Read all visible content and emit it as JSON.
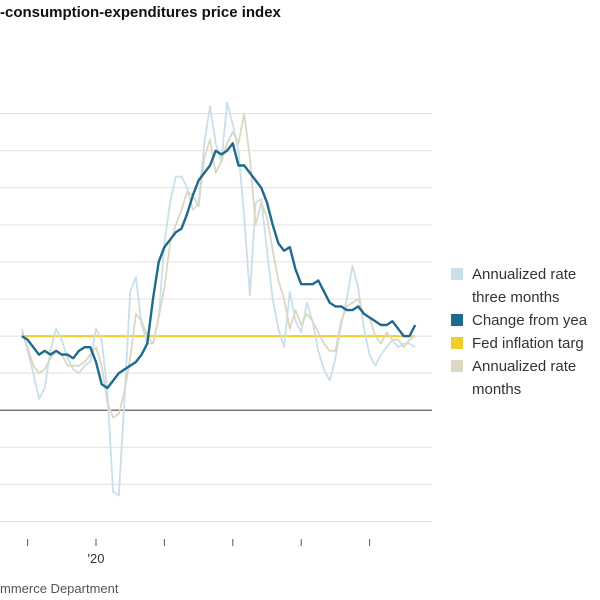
{
  "chart_title": "-consumption-expenditures price index",
  "source": "mmerce Department",
  "chart_data": {
    "type": "line",
    "title": "-consumption-expenditures price index",
    "xlabel": "",
    "ylabel": "",
    "x_tick_labels": [
      "'20"
    ],
    "grid": true,
    "legend_position": "right",
    "x": [
      "2018-12",
      "2019-01",
      "2019-02",
      "2019-03",
      "2019-04",
      "2019-05",
      "2019-06",
      "2019-07",
      "2019-08",
      "2019-09",
      "2019-10",
      "2019-11",
      "2019-12",
      "2020-01",
      "2020-02",
      "2020-03",
      "2020-04",
      "2020-05",
      "2020-06",
      "2020-07",
      "2020-08",
      "2020-09",
      "2020-10",
      "2020-11",
      "2020-12",
      "2021-01",
      "2021-02",
      "2021-03",
      "2021-04",
      "2021-05",
      "2021-06",
      "2021-07",
      "2021-08",
      "2021-09",
      "2021-10",
      "2021-11",
      "2021-12",
      "2022-01",
      "2022-02",
      "2022-03",
      "2022-04",
      "2022-05",
      "2022-06",
      "2022-07",
      "2022-08",
      "2022-09",
      "2022-10",
      "2022-11",
      "2022-12",
      "2023-01",
      "2023-02",
      "2023-03",
      "2023-04",
      "2023-05",
      "2023-06",
      "2023-07",
      "2023-08",
      "2023-09",
      "2023-10",
      "2023-11",
      "2023-12",
      "2024-01",
      "2024-02",
      "2024-03",
      "2024-04",
      "2024-05",
      "2024-06",
      "2024-07",
      "2024-08",
      "2024-09"
    ],
    "series": [
      {
        "name": "Annualized rate three months",
        "color": "#c9dfe9",
        "values": [
          2.2,
          1.6,
          1.0,
          0.3,
          0.6,
          1.6,
          2.2,
          1.9,
          1.4,
          1.1,
          1.0,
          1.2,
          1.3,
          2.2,
          1.9,
          0.5,
          -2.2,
          -2.3,
          0.3,
          3.2,
          3.6,
          2.3,
          1.8,
          1.8,
          2.5,
          4.5,
          5.6,
          6.3,
          6.3,
          6.0,
          5.4,
          5.6,
          7.2,
          8.2,
          7.2,
          6.7,
          8.3,
          7.7,
          7.0,
          5.2,
          3.1,
          5.6,
          5.7,
          4.3,
          3.0,
          2.2,
          1.7,
          3.2,
          2.4,
          2.1,
          2.9,
          2.4,
          1.6,
          1.1,
          0.8,
          1.4,
          2.3,
          3.0,
          3.9,
          3.3,
          2.2,
          1.5,
          1.2,
          1.5,
          1.7,
          1.9,
          1.7,
          1.8,
          1.8,
          1.7
        ]
      },
      {
        "name": "Change from yea",
        "color": "#1e6a8d",
        "values": [
          2.0,
          1.9,
          1.7,
          1.5,
          1.6,
          1.5,
          1.6,
          1.5,
          1.5,
          1.4,
          1.6,
          1.7,
          1.7,
          1.3,
          0.7,
          0.6,
          0.8,
          1.0,
          1.1,
          1.2,
          1.3,
          1.5,
          1.8,
          3.0,
          4.0,
          4.4,
          4.6,
          4.8,
          4.9,
          5.3,
          5.8,
          6.2,
          6.4,
          6.6,
          7.0,
          6.9,
          7.0,
          7.2,
          6.6,
          6.6,
          6.4,
          6.2,
          6.0,
          5.6,
          5.0,
          4.5,
          4.3,
          4.4,
          3.8,
          3.4,
          3.4,
          3.4,
          3.5,
          3.2,
          2.9,
          2.8,
          2.8,
          2.7,
          2.7,
          2.8,
          2.6,
          2.5,
          2.4,
          2.3,
          2.3,
          2.4,
          2.2,
          2.0,
          2.0,
          2.3
        ]
      },
      {
        "name": "Fed inflation targ",
        "color": "#f0cc2e",
        "values": [
          2.0,
          2.0,
          2.0,
          2.0,
          2.0,
          2.0,
          2.0,
          2.0,
          2.0,
          2.0,
          2.0,
          2.0,
          2.0,
          2.0,
          2.0,
          2.0,
          2.0,
          2.0,
          2.0,
          2.0,
          2.0,
          2.0,
          2.0,
          2.0,
          2.0,
          2.0,
          2.0,
          2.0,
          2.0,
          2.0,
          2.0,
          2.0,
          2.0,
          2.0,
          2.0,
          2.0,
          2.0,
          2.0,
          2.0,
          2.0,
          2.0,
          2.0,
          2.0,
          2.0,
          2.0,
          2.0,
          2.0,
          2.0,
          2.0,
          2.0,
          2.0,
          2.0,
          2.0,
          2.0,
          2.0,
          2.0,
          2.0,
          2.0,
          2.0,
          2.0,
          2.0,
          2.0,
          2.0,
          2.0,
          2.0,
          2.0,
          2.0,
          2.0,
          2.0,
          2.0
        ]
      },
      {
        "name": "Annualized rate months",
        "color": "#dcd7c2",
        "values": [
          2.1,
          1.7,
          1.2,
          1.0,
          1.1,
          1.4,
          1.6,
          1.5,
          1.2,
          1.2,
          1.2,
          1.3,
          1.5,
          1.7,
          1.2,
          0.2,
          -0.2,
          -0.1,
          0.5,
          1.4,
          2.6,
          2.4,
          2.0,
          1.8,
          2.5,
          3.3,
          4.5,
          5.0,
          5.4,
          5.9,
          5.8,
          5.5,
          6.8,
          7.3,
          6.4,
          6.7,
          7.2,
          7.5,
          7.2,
          8.0,
          6.8,
          5.0,
          5.6,
          5.2,
          4.3,
          3.5,
          3.0,
          2.2,
          2.7,
          2.3,
          2.6,
          2.4,
          2.1,
          1.8,
          1.6,
          1.6,
          2.4,
          2.8,
          2.9,
          3.0,
          2.6,
          2.5,
          2.0,
          1.8,
          2.1,
          1.9,
          1.9,
          1.7,
          1.9,
          2.0
        ]
      }
    ],
    "y_gridlines": [
      -3,
      -2,
      -1,
      0,
      1,
      2,
      3,
      4,
      5,
      6,
      7,
      8
    ],
    "zero_line": 0,
    "ylim": [
      -3.5,
      9.5
    ]
  },
  "legend": [
    {
      "label_lines": [
        "Annualized rate",
        "three months"
      ],
      "color": "#c9dfe9"
    },
    {
      "label_lines": [
        "Change from yea"
      ],
      "color": "#1e6a8d"
    },
    {
      "label_lines": [
        "Fed inflation targ"
      ],
      "color": "#f0cc2e"
    },
    {
      "label_lines": [
        "Annualized rate",
        "months"
      ],
      "color": "#dcd7c2"
    }
  ]
}
